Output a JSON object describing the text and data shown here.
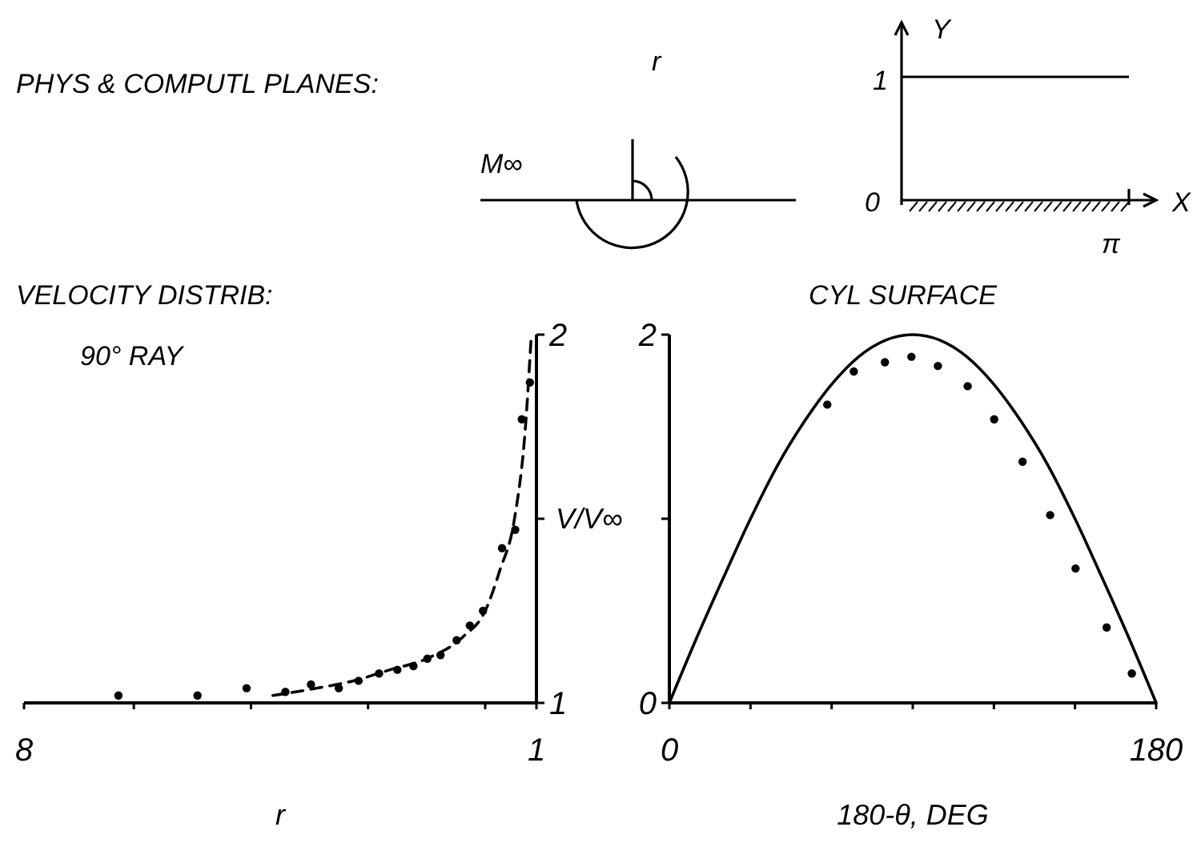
{
  "chart_data": [
    {
      "type": "other",
      "title": "PHYS & COMPUTL PLANES:",
      "annotations": [
        "M∞",
        "r",
        "Y",
        "1",
        "0",
        "X",
        "π"
      ]
    },
    {
      "type": "scatter",
      "title": "VELOCITY DISTRIB:",
      "subtitle": "90° RAY",
      "xlabel": "r",
      "ylabel": "V/V∞",
      "xlim": [
        8,
        1
      ],
      "xticks": [
        8,
        {
          "value": 6.5,
          "label": null
        },
        {
          "value": 4.9,
          "label": null
        },
        {
          "value": 3.3,
          "label": null
        },
        {
          "value": 1.7,
          "label": null
        },
        1
      ],
      "ylim": [
        1,
        2
      ],
      "yticks": [
        1,
        {
          "value": 1.5,
          "label": null
        },
        2
      ],
      "grid": false,
      "series": [
        {
          "type": "scatter",
          "color": "#000000",
          "marker": "circle",
          "x": [
            6.71,
            5.63,
            4.96,
            4.43,
            4.08,
            3.7,
            3.43,
            3.15,
            2.9,
            2.68,
            2.49,
            2.31,
            2.09,
            1.91,
            1.73,
            1.47,
            1.29,
            1.2,
            1.09
          ],
          "values": [
            1.02,
            1.02,
            1.04,
            1.03,
            1.05,
            1.04,
            1.06,
            1.08,
            1.09,
            1.1,
            1.12,
            1.13,
            1.17,
            1.21,
            1.25,
            1.42,
            1.47,
            1.77,
            1.87
          ]
        },
        {
          "type": "line",
          "color": "#000000",
          "line_style": "dashed",
          "x": [
            4.6,
            4,
            3.5,
            3,
            2.5,
            2,
            1.7,
            1.5,
            1.3,
            1.15,
            1.07
          ],
          "values": [
            1.02,
            1.04,
            1.06,
            1.09,
            1.12,
            1.18,
            1.25,
            1.36,
            1.5,
            1.75,
            2
          ]
        }
      ]
    },
    {
      "type": "line",
      "title": "CYL SURFACE",
      "xlabel": "180-θ, DEG",
      "xlim": [
        0,
        180
      ],
      "xticks": [
        0,
        {
          "value": 30,
          "label": null
        },
        {
          "value": 60,
          "label": null
        },
        {
          "value": 90,
          "label": null
        },
        {
          "value": 120,
          "label": null
        },
        {
          "value": 150,
          "label": null
        },
        180
      ],
      "ylim": [
        0,
        2
      ],
      "yticks": [
        0,
        {
          "value": 1,
          "label": null
        },
        2
      ],
      "grid": false,
      "series": [
        {
          "type": "line",
          "color": "#000000",
          "line_style": "solid",
          "x": [
            0,
            10,
            20,
            30,
            40,
            50,
            60,
            70,
            80,
            90,
            100,
            110,
            120,
            130,
            140,
            150,
            160,
            170,
            180
          ],
          "values": [
            0,
            0.35,
            0.68,
            1,
            1.29,
            1.53,
            1.73,
            1.88,
            1.97,
            2,
            1.97,
            1.88,
            1.73,
            1.53,
            1.29,
            1,
            0.68,
            0.35,
            0
          ]
        },
        {
          "type": "scatter",
          "color": "#000000",
          "marker": "circle",
          "x": [
            58.4,
            68.2,
            79.7,
            89.5,
            99.3,
            110.3,
            120.1,
            130.6,
            140.8,
            150.2,
            161.7,
            171
          ],
          "values": [
            1.62,
            1.8,
            1.85,
            1.88,
            1.83,
            1.72,
            1.54,
            1.31,
            1.02,
            0.73,
            0.41,
            0.16
          ]
        }
      ]
    }
  ]
}
